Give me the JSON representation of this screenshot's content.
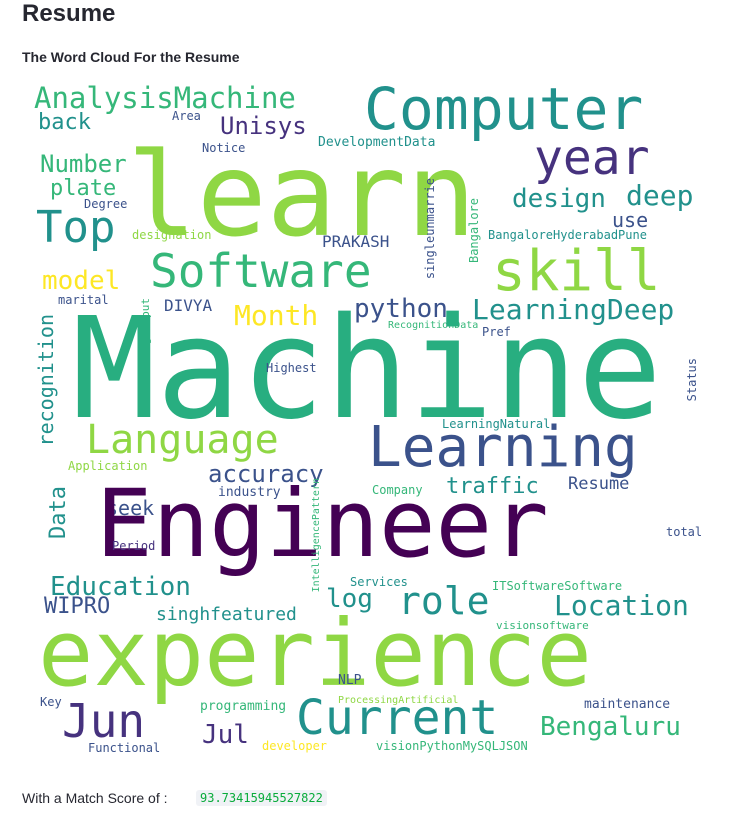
{
  "page": {
    "title": "Resume",
    "subtitle": "The Word Cloud For the Resume",
    "score_label": "With a Match Score of :",
    "score_value": "93.73415945527822"
  },
  "colors": {
    "light_green": "#8fd744",
    "teal": "#21918c",
    "mid_green": "#35b779",
    "blue": "#3b528b",
    "purple": "#440154",
    "dark_purple": "#46327e",
    "yellow": "#fde725",
    "sea_green": "#28ae80"
  },
  "cloud": {
    "words": [
      "learn",
      "Computer",
      "year",
      "AnalysisMachine",
      "back",
      "Area",
      "Unisys",
      "Notice",
      "DevelopmentData",
      "Number",
      "plate",
      "Top",
      "Degree",
      "designation",
      "design",
      "deep",
      "use",
      "singleunmarrie",
      "Bangalore",
      "BangaloreHyderabadPune",
      "PRAKASH",
      "Software",
      "skill",
      "model",
      "marital",
      "DIVYA",
      "Month",
      "python",
      "LearningDeep",
      "recognition",
      "learningcomput",
      "RecognitionData",
      "Pref",
      "Machine",
      "Highest",
      "Status",
      "LearningNatural",
      "Language",
      "Learning",
      "Application",
      "accuracy",
      "industry",
      "traffic",
      "Resume",
      "Company",
      "Data",
      "seek",
      "Engineer",
      "IntelligencePattern",
      "total",
      "Period",
      "Education",
      "Services",
      "ITSoftwareSoftware",
      "WIPRO",
      "singhfeatured",
      "log",
      "role",
      "Location",
      "visionsoftware",
      "experience",
      "NLP",
      "Key",
      "ProcessingArtificial",
      "programming",
      "maintenance",
      "Jun",
      "Current",
      "Bengaluru",
      "Jul",
      "developer",
      "visionPythonMySQLJSON",
      "Functional"
    ]
  }
}
